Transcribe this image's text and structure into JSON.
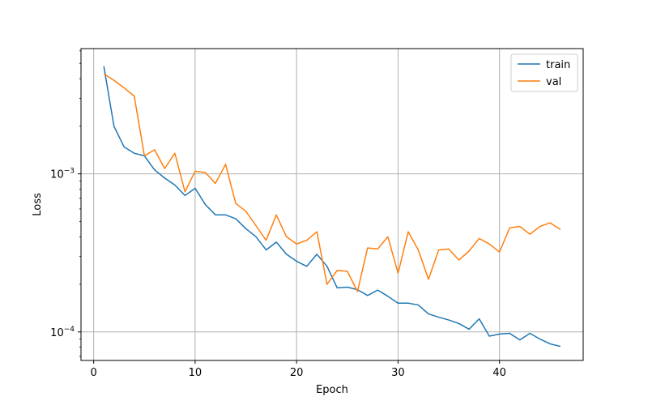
{
  "chart_data": {
    "type": "line",
    "title": "",
    "xlabel": "Epoch",
    "ylabel": "Loss",
    "yscale": "log",
    "xlim": [
      -1.25,
      48.25
    ],
    "ylim": [
      6.6e-05,
      0.0062
    ],
    "grid": true,
    "legend": "top-right",
    "x_ticks": [
      {
        "value": 0,
        "label": "0"
      },
      {
        "value": 10,
        "label": "10"
      },
      {
        "value": 20,
        "label": "20"
      },
      {
        "value": 30,
        "label": "30"
      },
      {
        "value": 40,
        "label": "40"
      }
    ],
    "y_ticks": [
      {
        "value": 0.001,
        "base": "10",
        "exp": "−3"
      },
      {
        "value": 0.0001,
        "base": "10",
        "exp": "−4"
      }
    ],
    "x": [
      1,
      2,
      3,
      4,
      5,
      6,
      7,
      8,
      9,
      10,
      11,
      12,
      13,
      14,
      15,
      16,
      17,
      18,
      19,
      20,
      21,
      22,
      23,
      24,
      25,
      26,
      27,
      28,
      29,
      30,
      31,
      32,
      33,
      34,
      35,
      36,
      37,
      38,
      39,
      40,
      41,
      42,
      43,
      44,
      45,
      46
    ],
    "series": [
      {
        "name": "train",
        "color": "#1f77b4",
        "values": [
          0.0048,
          0.002,
          0.00148,
          0.00135,
          0.0013,
          0.00106,
          0.00094,
          0.00085,
          0.00073,
          0.00081,
          0.00064,
          0.00055,
          0.00055,
          0.00052,
          0.00045,
          0.0004,
          0.00033,
          0.00037,
          0.00031,
          0.00028,
          0.00026,
          0.00031,
          0.00026,
          0.00019,
          0.000192,
          0.000185,
          0.00017,
          0.000184,
          0.000168,
          0.000152,
          0.000152,
          0.000148,
          0.00013,
          0.000124,
          0.000119,
          0.000113,
          0.000104,
          0.000121,
          9.4e-05,
          9.7e-05,
          9.8e-05,
          8.9e-05,
          9.8e-05,
          9e-05,
          8.4e-05,
          8.1e-05
        ]
      },
      {
        "name": "val",
        "color": "#ff7f0e",
        "values": [
          0.0043,
          0.0039,
          0.0035,
          0.0031,
          0.0013,
          0.00142,
          0.00108,
          0.00135,
          0.00077,
          0.00104,
          0.00102,
          0.00087,
          0.00115,
          0.00065,
          0.00058,
          0.00047,
          0.00038,
          0.00055,
          0.0004,
          0.00036,
          0.00038,
          0.00043,
          0.0002,
          0.000245,
          0.000242,
          0.00018,
          0.00034,
          0.000335,
          0.0004,
          0.000235,
          0.00043,
          0.00033,
          0.000215,
          0.00033,
          0.000335,
          0.000285,
          0.000325,
          0.00039,
          0.00036,
          0.00032,
          0.000455,
          0.000465,
          0.000415,
          0.000465,
          0.00049,
          0.000445
        ]
      }
    ]
  }
}
